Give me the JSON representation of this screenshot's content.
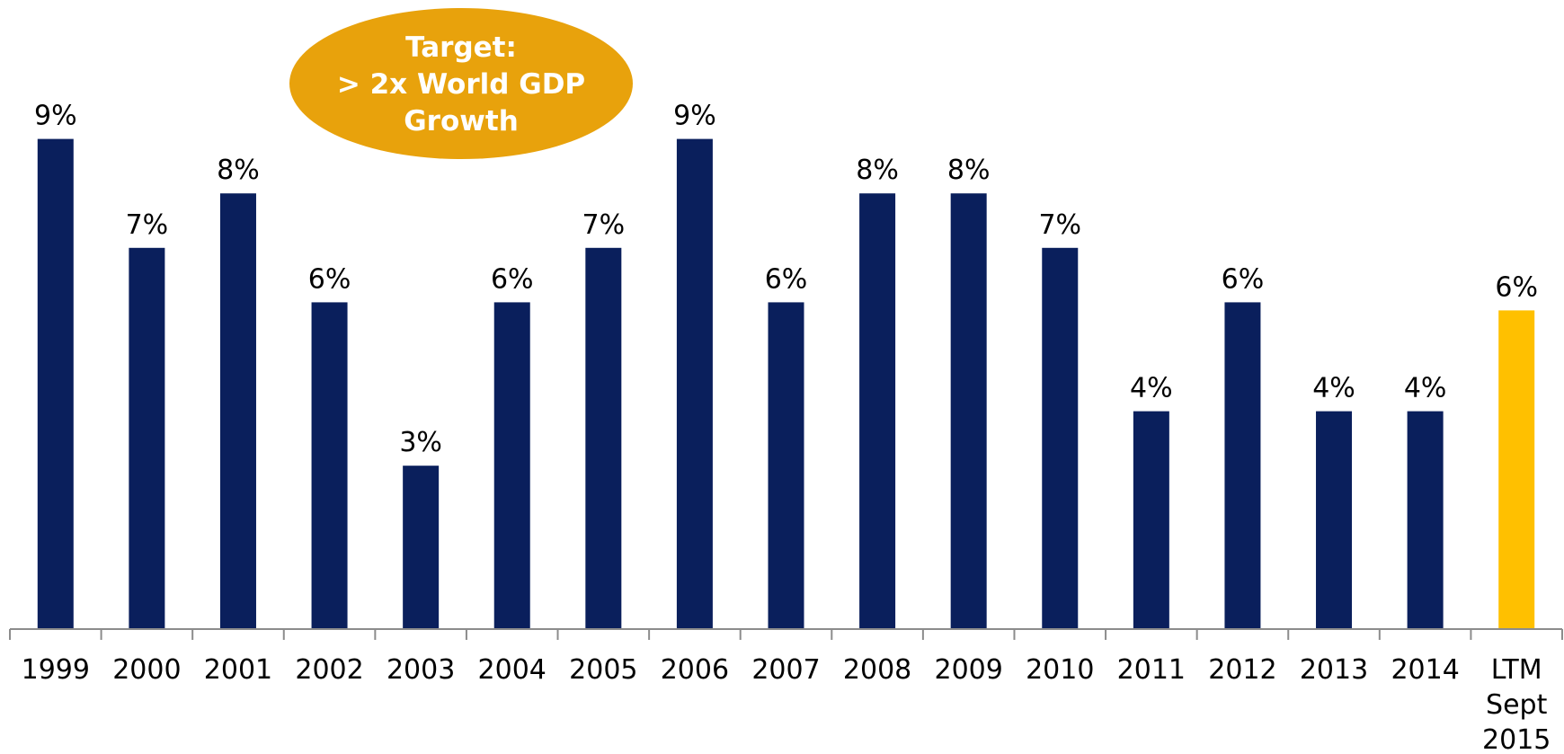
{
  "chart_data": {
    "type": "bar",
    "categories": [
      "1999",
      "2000",
      "2001",
      "2002",
      "2003",
      "2004",
      "2005",
      "2006",
      "2007",
      "2008",
      "2009",
      "2010",
      "2011",
      "2012",
      "2013",
      "2014",
      "LTM Sept 2015"
    ],
    "values": [
      9,
      7,
      8,
      6,
      3,
      6,
      7,
      9,
      6,
      8,
      8,
      7,
      4,
      6,
      4,
      4,
      6
    ],
    "data_labels": [
      "9%",
      "7%",
      "8%",
      "6%",
      "3%",
      "6%",
      "7%",
      "9%",
      "6%",
      "8%",
      "8%",
      "7%",
      "4%",
      "6%",
      "4%",
      "4%",
      "6%"
    ],
    "ylim": [
      0,
      10
    ],
    "grid": false,
    "bar_color": "#0A1F5C",
    "highlight_color": "#FFC000",
    "highlight_index": 16,
    "annotation": {
      "lines": [
        "Target:",
        "> 2x World GDP",
        "Growth"
      ],
      "color": "#E8A20C"
    }
  }
}
